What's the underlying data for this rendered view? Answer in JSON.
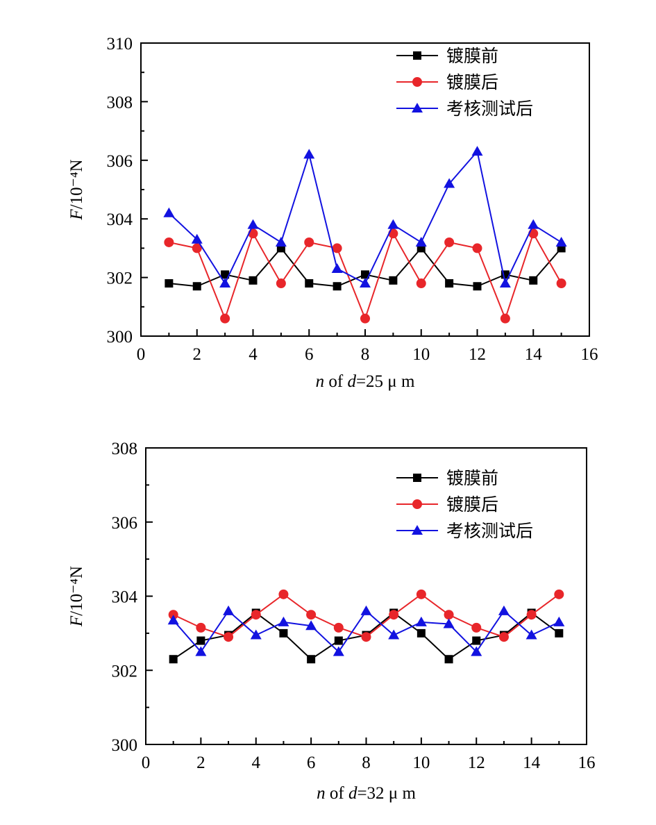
{
  "chart_data": [
    {
      "type": "line",
      "xlabel": {
        "var": "n",
        "mid": " of ",
        "var2": "d",
        "tail": "=25 μ m"
      },
      "ylabel": {
        "var": "F",
        "unit": "/10⁻⁴N"
      },
      "xlim": [
        0,
        16
      ],
      "ylim": [
        300,
        310
      ],
      "xticks": [
        0,
        2,
        4,
        6,
        8,
        10,
        12,
        14,
        16
      ],
      "yticks": [
        300,
        302,
        304,
        306,
        308,
        310
      ],
      "grid": false,
      "legend": "top-right",
      "x": [
        1,
        2,
        3,
        4,
        5,
        6,
        7,
        8,
        9,
        10,
        11,
        12,
        13,
        14,
        15
      ],
      "series": [
        {
          "name": "镀膜前",
          "color": "#000000",
          "marker": "square",
          "values": [
            301.8,
            301.7,
            302.1,
            301.9,
            303.0,
            301.8,
            301.7,
            302.1,
            301.9,
            303.0,
            301.8,
            301.7,
            302.1,
            301.9,
            303.0
          ]
        },
        {
          "name": "镀膜后",
          "color": "#e8262a",
          "marker": "circle",
          "values": [
            303.2,
            303.0,
            300.6,
            303.5,
            301.8,
            303.2,
            303.0,
            300.6,
            303.5,
            301.8,
            303.2,
            303.0,
            300.6,
            303.5,
            301.8
          ]
        },
        {
          "name": "考核测试后",
          "color": "#1212e0",
          "marker": "triangle",
          "values": [
            304.2,
            303.3,
            301.8,
            303.8,
            303.2,
            306.2,
            302.3,
            301.8,
            303.8,
            303.2,
            305.2,
            306.3,
            301.8,
            303.8,
            303.2
          ]
        }
      ]
    },
    {
      "type": "line",
      "xlabel": {
        "var": "n",
        "mid": " of ",
        "var2": "d",
        "tail": "=32  μ m"
      },
      "ylabel": {
        "var": "F",
        "unit": "/10⁻⁴N"
      },
      "xlim": [
        0,
        16
      ],
      "ylim": [
        300,
        308
      ],
      "xticks": [
        0,
        2,
        4,
        6,
        8,
        10,
        12,
        14,
        16
      ],
      "yticks": [
        300,
        302,
        304,
        306,
        308
      ],
      "grid": false,
      "legend": "top-right",
      "x": [
        1,
        2,
        3,
        4,
        5,
        6,
        7,
        8,
        9,
        10,
        11,
        12,
        13,
        14,
        15
      ],
      "series": [
        {
          "name": "镀膜前",
          "color": "#000000",
          "marker": "square",
          "values": [
            302.3,
            302.8,
            302.95,
            303.55,
            303.0,
            302.3,
            302.8,
            302.95,
            303.55,
            303.0,
            302.3,
            302.8,
            302.95,
            303.55,
            303.0
          ]
        },
        {
          "name": "镀膜后",
          "color": "#e8262a",
          "marker": "circle",
          "values": [
            303.5,
            303.15,
            302.9,
            303.5,
            304.05,
            303.5,
            303.15,
            302.9,
            303.5,
            304.05,
            303.5,
            303.15,
            302.9,
            303.5,
            304.05
          ]
        },
        {
          "name": "考核测试后",
          "color": "#1212e0",
          "marker": "triangle",
          "values": [
            303.35,
            302.5,
            303.6,
            302.95,
            303.3,
            303.2,
            302.5,
            303.6,
            302.95,
            303.3,
            303.25,
            302.5,
            303.6,
            302.95,
            303.3
          ]
        }
      ]
    }
  ]
}
